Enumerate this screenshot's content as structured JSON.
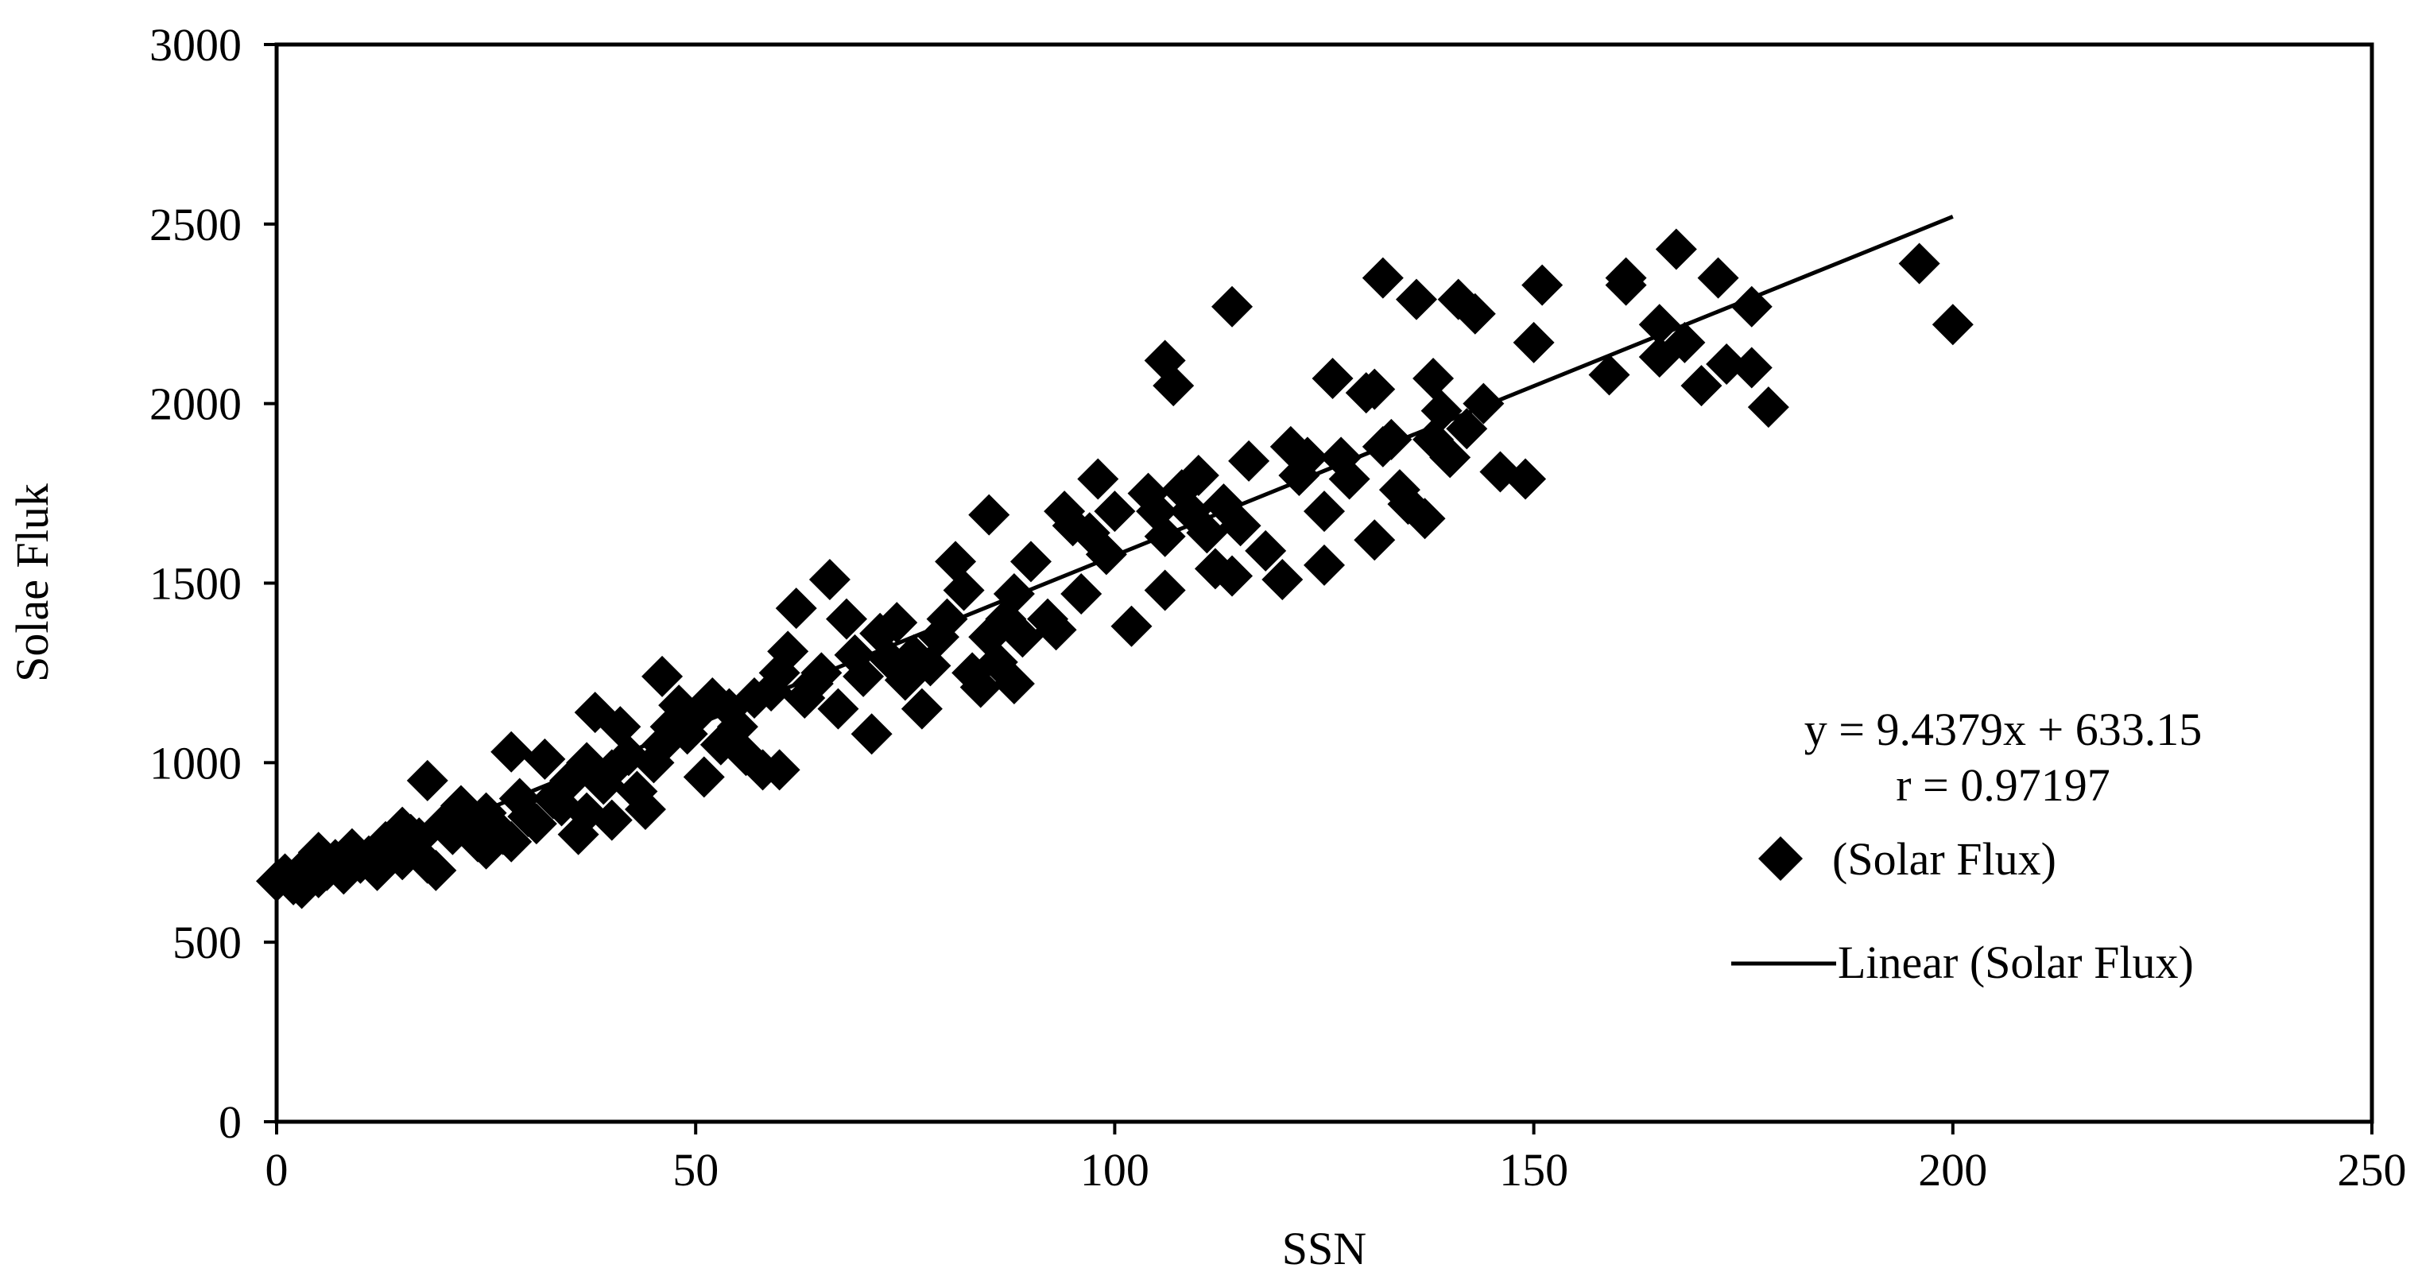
{
  "chart_data": {
    "type": "scatter",
    "title": "",
    "xlabel": "SSN",
    "ylabel": "Solae Fluk",
    "xlim": [
      0,
      250
    ],
    "ylim": [
      0,
      3000
    ],
    "x_ticks": [
      "0",
      "50",
      "100",
      "150",
      "200",
      "250"
    ],
    "y_ticks": [
      "0",
      "500",
      "1000",
      "1500",
      "2000",
      "2500",
      "3000"
    ],
    "grid": false,
    "legend_position": "right",
    "marker": "diamond",
    "colors": {
      "marker": "#000000",
      "trendline": "#000000",
      "axes": "#000000",
      "background": "#ffffff"
    },
    "annotations": {
      "equation": "y = 9.4379x + 633.15",
      "r_value": "r = 0.97197"
    },
    "series": [
      {
        "name": "(Solar Flux)",
        "points": [
          [
            0,
            670
          ],
          [
            1,
            690
          ],
          [
            2,
            660
          ],
          [
            3,
            700
          ],
          [
            3,
            650
          ],
          [
            4,
            720
          ],
          [
            5,
            680
          ],
          [
            5,
            750
          ],
          [
            6,
            700
          ],
          [
            7,
            730
          ],
          [
            8,
            690
          ],
          [
            9,
            760
          ],
          [
            10,
            720
          ],
          [
            11,
            740
          ],
          [
            12,
            700
          ],
          [
            13,
            780
          ],
          [
            14,
            760
          ],
          [
            15,
            820
          ],
          [
            15,
            730
          ],
          [
            16,
            800
          ],
          [
            17,
            790
          ],
          [
            18,
            720
          ],
          [
            18,
            950
          ],
          [
            19,
            700
          ],
          [
            20,
            830
          ],
          [
            21,
            800
          ],
          [
            22,
            880
          ],
          [
            23,
            830
          ],
          [
            24,
            780
          ],
          [
            25,
            760
          ],
          [
            25,
            860
          ],
          [
            27,
            800
          ],
          [
            28,
            780
          ],
          [
            28,
            1030
          ],
          [
            29,
            900
          ],
          [
            30,
            850
          ],
          [
            31,
            830
          ],
          [
            32,
            1010
          ],
          [
            33,
            900
          ],
          [
            34,
            880
          ],
          [
            35,
            950
          ],
          [
            36,
            800
          ],
          [
            37,
            1000
          ],
          [
            37,
            860
          ],
          [
            38,
            1140
          ],
          [
            39,
            940
          ],
          [
            40,
            980
          ],
          [
            40,
            840
          ],
          [
            41,
            1100
          ],
          [
            42,
            1020
          ],
          [
            43,
            920
          ],
          [
            44,
            870
          ],
          [
            45,
            1000
          ],
          [
            46,
            1050
          ],
          [
            46,
            1240
          ],
          [
            47,
            1100
          ],
          [
            48,
            1160
          ],
          [
            49,
            1080
          ],
          [
            50,
            1130
          ],
          [
            51,
            960
          ],
          [
            52,
            1180
          ],
          [
            53,
            1050
          ],
          [
            54,
            1150
          ],
          [
            55,
            1100
          ],
          [
            56,
            1020
          ],
          [
            57,
            1180
          ],
          [
            58,
            980
          ],
          [
            59,
            1200
          ],
          [
            60,
            1250
          ],
          [
            60,
            980
          ],
          [
            61,
            1310
          ],
          [
            62,
            1430
          ],
          [
            63,
            1180
          ],
          [
            64,
            1220
          ],
          [
            65,
            1250
          ],
          [
            66,
            1510
          ],
          [
            67,
            1150
          ],
          [
            68,
            1400
          ],
          [
            69,
            1300
          ],
          [
            70,
            1240
          ],
          [
            71,
            1080
          ],
          [
            72,
            1360
          ],
          [
            73,
            1290
          ],
          [
            74,
            1390
          ],
          [
            75,
            1230
          ],
          [
            76,
            1300
          ],
          [
            77,
            1150
          ],
          [
            78,
            1270
          ],
          [
            79,
            1350
          ],
          [
            80,
            1400
          ],
          [
            81,
            1560
          ],
          [
            82,
            1480
          ],
          [
            83,
            1250
          ],
          [
            84,
            1210
          ],
          [
            85,
            1690
          ],
          [
            85,
            1350
          ],
          [
            86,
            1280
          ],
          [
            87,
            1400
          ],
          [
            88,
            1470
          ],
          [
            88,
            1220
          ],
          [
            89,
            1350
          ],
          [
            90,
            1560
          ],
          [
            92,
            1400
          ],
          [
            93,
            1370
          ],
          [
            94,
            1700
          ],
          [
            95,
            1660
          ],
          [
            96,
            1470
          ],
          [
            97,
            1640
          ],
          [
            98,
            1790
          ],
          [
            99,
            1580
          ],
          [
            100,
            1700
          ],
          [
            102,
            1380
          ],
          [
            104,
            1750
          ],
          [
            105,
            1700
          ],
          [
            106,
            1630
          ],
          [
            106,
            2120
          ],
          [
            106,
            1480
          ],
          [
            107,
            2050
          ],
          [
            108,
            1760
          ],
          [
            109,
            1700
          ],
          [
            110,
            1800
          ],
          [
            111,
            1640
          ],
          [
            112,
            1540
          ],
          [
            113,
            1720
          ],
          [
            114,
            1520
          ],
          [
            114,
            2270
          ],
          [
            115,
            1660
          ],
          [
            116,
            1840
          ],
          [
            118,
            1590
          ],
          [
            120,
            1510
          ],
          [
            121,
            1880
          ],
          [
            122,
            1800
          ],
          [
            123,
            1850
          ],
          [
            125,
            1700
          ],
          [
            125,
            1550
          ],
          [
            126,
            2070
          ],
          [
            127,
            1850
          ],
          [
            128,
            1790
          ],
          [
            130,
            2030
          ],
          [
            131,
            1620
          ],
          [
            131,
            2040
          ],
          [
            132,
            1880
          ],
          [
            132,
            2350
          ],
          [
            133,
            1900
          ],
          [
            134,
            1760
          ],
          [
            135,
            1720
          ],
          [
            136,
            2290
          ],
          [
            137,
            1680
          ],
          [
            138,
            2070
          ],
          [
            138,
            1900
          ],
          [
            139,
            1980
          ],
          [
            140,
            1850
          ],
          [
            141,
            2290
          ],
          [
            142,
            1930
          ],
          [
            143,
            2250
          ],
          [
            144,
            2000
          ],
          [
            146,
            1810
          ],
          [
            149,
            1790
          ],
          [
            150,
            2170
          ],
          [
            151,
            2330
          ],
          [
            159,
            2080
          ],
          [
            161,
            2330
          ],
          [
            161,
            2350
          ],
          [
            165,
            2220
          ],
          [
            165,
            2130
          ],
          [
            167,
            2430
          ],
          [
            168,
            2170
          ],
          [
            170,
            2050
          ],
          [
            172,
            2350
          ],
          [
            173,
            2110
          ],
          [
            176,
            2270
          ],
          [
            176,
            2100
          ],
          [
            178,
            1990
          ],
          [
            196,
            2390
          ],
          [
            200,
            2220
          ]
        ]
      },
      {
        "name": "Linear (Solar Flux)",
        "trendline": {
          "slope": 9.4379,
          "intercept": 633.15,
          "x_range": [
            0,
            200
          ]
        }
      }
    ]
  }
}
